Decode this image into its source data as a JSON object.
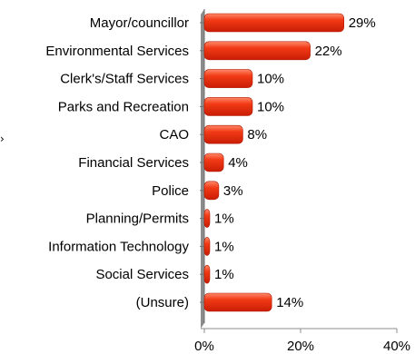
{
  "chart_data": {
    "type": "bar",
    "orientation": "horizontal",
    "categories": [
      "Mayor/councillor",
      "Environmental Services",
      "Clerk's/Staff Services",
      "Parks and Recreation",
      "CAO",
      "Financial Services",
      "Police",
      "Planning/Permits",
      "Information Technology",
      "Social Services",
      "(Unsure)"
    ],
    "values": [
      29,
      22,
      10,
      10,
      8,
      4,
      3,
      1,
      1,
      1,
      14
    ],
    "data_labels": [
      "29%",
      "22%",
      "10%",
      "10%",
      "8%",
      "4%",
      "3%",
      "1%",
      "1%",
      "1%",
      "14%"
    ],
    "xticks": [
      "0%",
      "20%",
      "40%"
    ],
    "xlim": [
      0,
      40
    ],
    "grid": false,
    "bar_color": "#ee2a10",
    "axis_color": "#8c8c8c"
  },
  "marker_glyph": "›"
}
